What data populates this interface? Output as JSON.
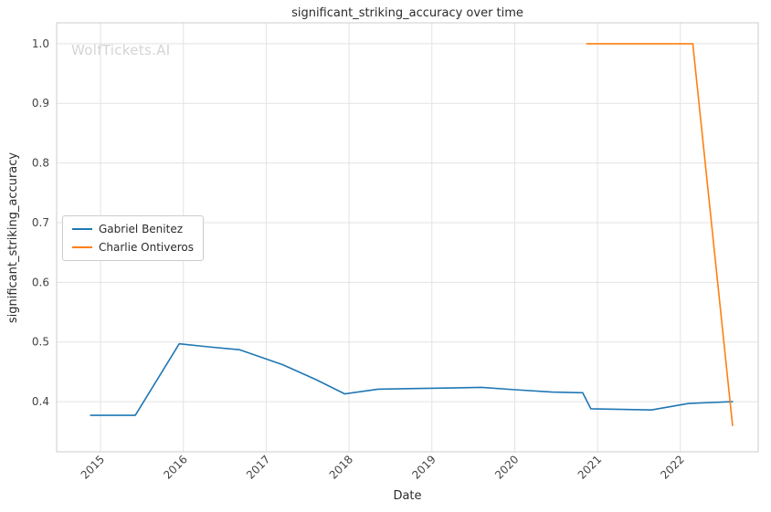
{
  "title": "significant_striking_accuracy over time",
  "watermark": "WolfTickets.AI",
  "chart_data": {
    "type": "line",
    "title": "significant_striking_accuracy over time",
    "xlabel": "Date",
    "ylabel": "significant_striking_accuracy",
    "xlim": [
      2014.47,
      2022.94
    ],
    "ylim": [
      0.316,
      1.035
    ],
    "x_ticks": [
      2015,
      2016,
      2017,
      2018,
      2019,
      2020,
      2021,
      2022
    ],
    "y_ticks": [
      0.4,
      0.5,
      0.6,
      0.7,
      0.8,
      0.9,
      1.0
    ],
    "grid": true,
    "legend_position": "center-left",
    "series": [
      {
        "name": "Gabriel Benitez",
        "color": "#1f77b4",
        "points": [
          [
            2014.88,
            0.377
          ],
          [
            2015.42,
            0.377
          ],
          [
            2015.95,
            0.497
          ],
          [
            2016.3,
            0.492
          ],
          [
            2016.68,
            0.487
          ],
          [
            2017.2,
            0.462
          ],
          [
            2017.6,
            0.437
          ],
          [
            2017.95,
            0.413
          ],
          [
            2018.35,
            0.421
          ],
          [
            2018.8,
            0.422
          ],
          [
            2019.25,
            0.423
          ],
          [
            2019.6,
            0.424
          ],
          [
            2020.0,
            0.42
          ],
          [
            2020.45,
            0.416
          ],
          [
            2020.82,
            0.415
          ],
          [
            2020.92,
            0.388
          ],
          [
            2021.3,
            0.387
          ],
          [
            2021.65,
            0.386
          ],
          [
            2022.1,
            0.397
          ],
          [
            2022.63,
            0.4
          ]
        ]
      },
      {
        "name": "Charlie Ontiveros",
        "color": "#ff7f0e",
        "points": [
          [
            2020.87,
            1.0
          ],
          [
            2022.15,
            1.0
          ],
          [
            2022.63,
            0.36
          ]
        ]
      }
    ]
  },
  "legend": {
    "items": [
      {
        "label": "Gabriel Benitez",
        "color": "#1f77b4"
      },
      {
        "label": "Charlie Ontiveros",
        "color": "#ff7f0e"
      }
    ]
  },
  "colors": {
    "grid": "#e3e3e3",
    "spine": "#cccccc",
    "tick_text": "#444444",
    "watermark": "#d4d4d4"
  }
}
